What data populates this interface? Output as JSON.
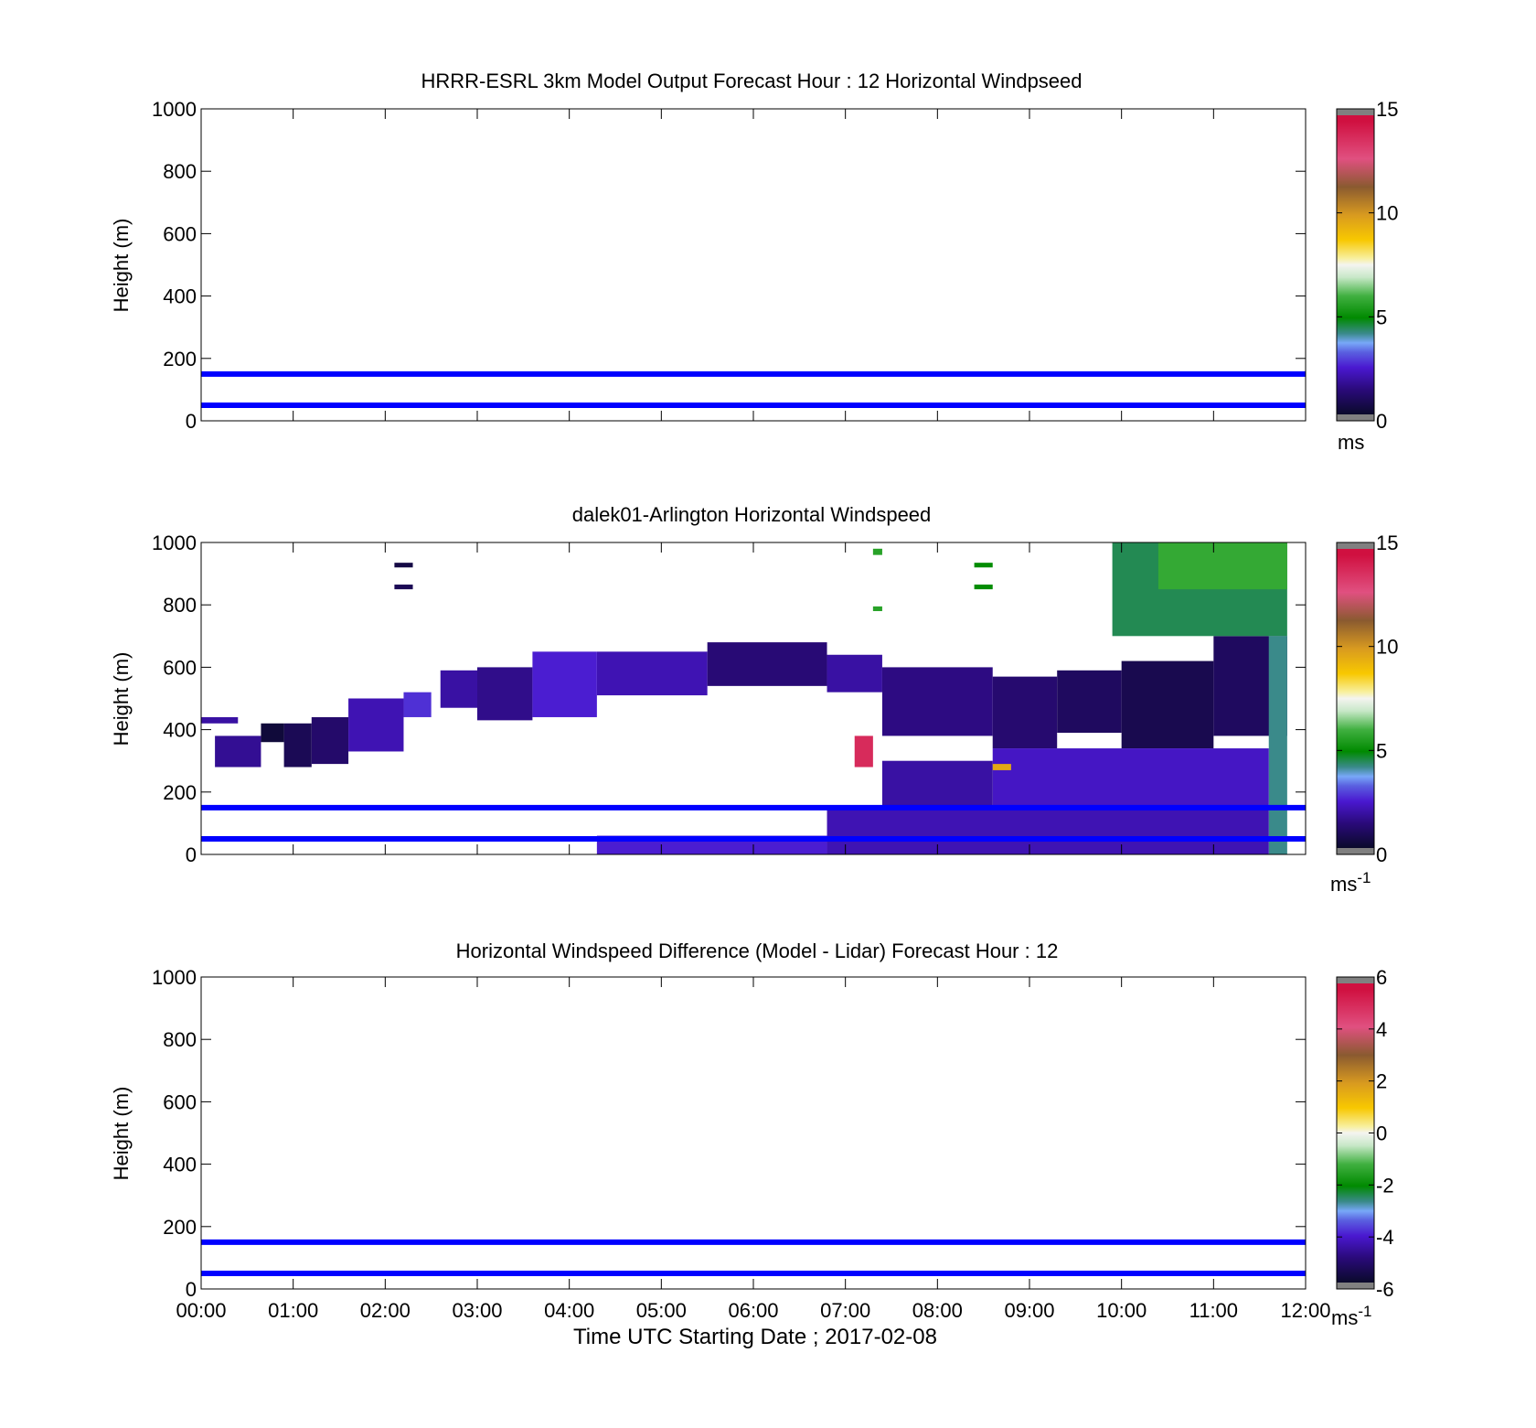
{
  "figure": {
    "background": "#ffffff",
    "bar_unit_top": "ms",
    "bar_unit_bottom": "ms",
    "bar_unit_exp": "-1"
  },
  "chart_data": [
    {
      "type": "heatmap",
      "title": "HRRR-ESRL 3km Model Output   Forecast Hour : 12 Horizontal Windpseed",
      "ylabel": "Height (m)",
      "xlabel": "",
      "xlim": [
        0,
        12
      ],
      "ylim": [
        0,
        1000
      ],
      "yticks": [
        "0",
        "200",
        "400",
        "600",
        "800",
        "1000"
      ],
      "xtick_labels_visible": false,
      "colorbar": {
        "min": 0,
        "max": 15,
        "ticks": [
          "0",
          "5",
          "10",
          "15"
        ],
        "unit": "ms",
        "unit_exp": ""
      },
      "reference_lines": [
        {
          "y": 150,
          "color": "#0000ff"
        },
        {
          "y": 50,
          "color": "#0000ff"
        }
      ],
      "cells": []
    },
    {
      "type": "heatmap",
      "title": "dalek01-Arlington  Horizontal Windspeed",
      "ylabel": "Height (m)",
      "xlabel": "",
      "xlim": [
        0,
        12
      ],
      "ylim": [
        0,
        1000
      ],
      "yticks": [
        "0",
        "200",
        "400",
        "600",
        "800",
        "1000"
      ],
      "xtick_labels_visible": false,
      "colorbar": {
        "min": 0,
        "max": 15,
        "ticks": [
          "0",
          "5",
          "10",
          "15"
        ],
        "unit": "ms",
        "unit_exp": "-1"
      },
      "reference_lines": [
        {
          "y": 150,
          "color": "#0000ff"
        },
        {
          "y": 50,
          "color": "#0000ff"
        }
      ],
      "cells": [
        {
          "t0": 0.0,
          "t1": 0.4,
          "h0": 420,
          "h1": 440,
          "v": 2.0
        },
        {
          "t0": 0.15,
          "t1": 0.65,
          "h0": 280,
          "h1": 380,
          "v": 1.8
        },
        {
          "t0": 0.65,
          "t1": 0.9,
          "h0": 360,
          "h1": 420,
          "v": 0.3
        },
        {
          "t0": 0.9,
          "t1": 1.2,
          "h0": 280,
          "h1": 420,
          "v": 0.8
        },
        {
          "t0": 1.2,
          "t1": 1.6,
          "h0": 290,
          "h1": 440,
          "v": 1.2
        },
        {
          "t0": 1.6,
          "t1": 2.2,
          "h0": 330,
          "h1": 500,
          "v": 2.2
        },
        {
          "t0": 2.2,
          "t1": 2.5,
          "h0": 440,
          "h1": 520,
          "v": 2.8
        },
        {
          "t0": 2.1,
          "t1": 2.3,
          "h0": 920,
          "h1": 935,
          "v": 0.5
        },
        {
          "t0": 2.1,
          "t1": 2.3,
          "h0": 850,
          "h1": 865,
          "v": 0.8
        },
        {
          "t0": 2.6,
          "t1": 3.0,
          "h0": 470,
          "h1": 590,
          "v": 2.0
        },
        {
          "t0": 3.0,
          "t1": 3.6,
          "h0": 430,
          "h1": 600,
          "v": 1.7
        },
        {
          "t0": 3.6,
          "t1": 4.3,
          "h0": 440,
          "h1": 650,
          "v": 2.6
        },
        {
          "t0": 4.3,
          "t1": 5.5,
          "h0": 510,
          "h1": 650,
          "v": 2.2
        },
        {
          "t0": 5.5,
          "t1": 6.8,
          "h0": 540,
          "h1": 680,
          "v": 1.4
        },
        {
          "t0": 6.8,
          "t1": 7.4,
          "h0": 520,
          "h1": 640,
          "v": 2.0
        },
        {
          "t0": 7.4,
          "t1": 8.6,
          "h0": 380,
          "h1": 600,
          "v": 1.6
        },
        {
          "t0": 8.6,
          "t1": 9.3,
          "h0": 340,
          "h1": 570,
          "v": 1.3
        },
        {
          "t0": 9.3,
          "t1": 10.0,
          "h0": 390,
          "h1": 590,
          "v": 1.0
        },
        {
          "t0": 10.0,
          "t1": 11.0,
          "h0": 340,
          "h1": 620,
          "v": 0.7
        },
        {
          "t0": 11.0,
          "t1": 11.8,
          "h0": 380,
          "h1": 700,
          "v": 1.0
        },
        {
          "t0": 9.9,
          "t1": 11.8,
          "h0": 700,
          "h1": 1000,
          "v": 4.5
        },
        {
          "t0": 10.4,
          "t1": 11.8,
          "h0": 850,
          "h1": 1000,
          "v": 5.8
        },
        {
          "t0": 11.6,
          "t1": 11.8,
          "h0": 0,
          "h1": 700,
          "v": 4.2
        },
        {
          "t0": 8.6,
          "t1": 11.6,
          "h0": 150,
          "h1": 340,
          "v": 2.4
        },
        {
          "t0": 7.4,
          "t1": 8.6,
          "h0": 150,
          "h1": 300,
          "v": 2.0
        },
        {
          "t0": 6.8,
          "t1": 11.6,
          "h0": 0,
          "h1": 150,
          "v": 2.2
        },
        {
          "t0": 4.3,
          "t1": 6.8,
          "h0": 0,
          "h1": 60,
          "v": 2.6
        },
        {
          "t0": 7.1,
          "t1": 7.3,
          "h0": 280,
          "h1": 380,
          "v": 14.0
        },
        {
          "t0": 7.3,
          "t1": 7.4,
          "h0": 960,
          "h1": 980,
          "v": 5.6
        },
        {
          "t0": 7.3,
          "t1": 7.4,
          "h0": 780,
          "h1": 795,
          "v": 5.6
        },
        {
          "t0": 8.4,
          "t1": 8.6,
          "h0": 920,
          "h1": 935,
          "v": 5.0
        },
        {
          "t0": 8.4,
          "t1": 8.6,
          "h0": 850,
          "h1": 865,
          "v": 5.0
        },
        {
          "t0": 8.6,
          "t1": 8.8,
          "h0": 270,
          "h1": 290,
          "v": 9.5
        }
      ]
    },
    {
      "type": "heatmap",
      "title": "Horizontal Windspeed Difference (Model - Lidar) Forecast Hour : 12",
      "ylabel": "Height (m)",
      "xlabel": "Time UTC  Starting Date ; 2017-02-08",
      "xlim": [
        0,
        12
      ],
      "ylim": [
        0,
        1000
      ],
      "yticks": [
        "0",
        "200",
        "400",
        "600",
        "800",
        "1000"
      ],
      "xtick_labels_visible": true,
      "xticks": [
        "00:00",
        "01:00",
        "02:00",
        "03:00",
        "04:00",
        "05:00",
        "06:00",
        "07:00",
        "08:00",
        "09:00",
        "10:00",
        "11:00",
        "12:00"
      ],
      "colorbar": {
        "min": -6,
        "max": 6,
        "ticks": [
          "-6",
          "-4",
          "-2",
          "0",
          "2",
          "4",
          "6"
        ],
        "unit": "ms",
        "unit_exp": "-1"
      },
      "reference_lines": [
        {
          "y": 150,
          "color": "#0000ff"
        },
        {
          "y": 50,
          "color": "#0000ff"
        }
      ],
      "cells": []
    }
  ]
}
